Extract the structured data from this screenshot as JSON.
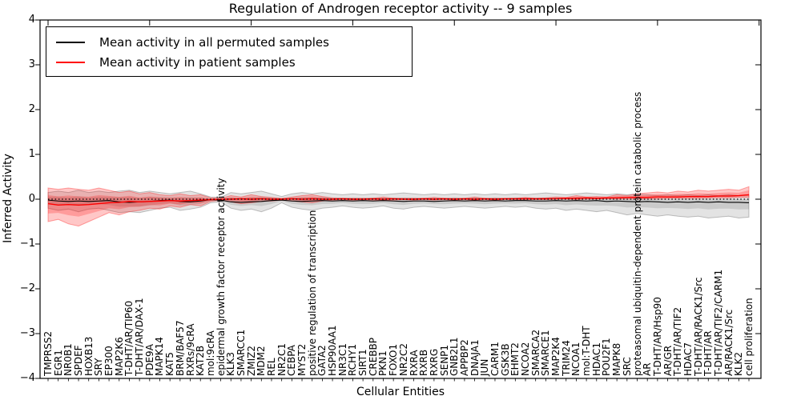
{
  "figure": {
    "title": "Regulation of Androgen receptor activity -- 9 samples"
  },
  "axes": {
    "xlabel": "Cellular Entities",
    "ylabel": "Inferred Activity"
  },
  "legend": {
    "items": [
      {
        "label": "Mean activity in all permuted samples",
        "color": "#000000"
      },
      {
        "label": "Mean activity in patient samples",
        "color": "#ff0000"
      }
    ]
  },
  "chart_data": {
    "type": "line",
    "title": "Regulation of Androgen receptor activity -- 9 samples",
    "xlabel": "Cellular Entities",
    "ylabel": "Inferred Activity",
    "ylim": [
      -4,
      4
    ],
    "yticks": [
      -4,
      -3,
      -2,
      -1,
      0,
      1,
      2,
      3,
      4
    ],
    "grid": false,
    "legend_position": "upper left",
    "zero_line": {
      "y": 0,
      "style": "dotted",
      "color": "#000000"
    },
    "categories": [
      "TMPRSS2",
      "EGR1",
      "NR0B1",
      "SPDEF",
      "HOXB13",
      "SRY",
      "EP300",
      "MAP2K6",
      "T-DHT/AR/TIP60",
      "T-DHT/AR/DAX-1",
      "PDE9A",
      "MAPK14",
      "KAT5",
      "BRM/BAF57",
      "RXRs/9cRA",
      "KAT2B",
      "mol:9cRA",
      "epidermal growth factor receptor activity",
      "KLK3",
      "SMARCC1",
      "ZMIZ2",
      "MDM2",
      "REL",
      "NR2C1",
      "CEBPA",
      "MYST2",
      "positive regulation of transcription",
      "GATA2",
      "HSP90AA1",
      "NR3C1",
      "RCHY1",
      "SIRT1",
      "CREBBP",
      "PKN1",
      "FOXO1",
      "NR2C2",
      "RXRA",
      "RXRB",
      "RXRG",
      "SENP1",
      "GNB2L1",
      "APPBP2",
      "DNAJA1",
      "JUN",
      "CARM1",
      "GSK3B",
      "EHMT2",
      "NCOA2",
      "SMARCA2",
      "SMARCE1",
      "MAP2K4",
      "TRIM24",
      "NCOA1",
      "mol:T-DHT",
      "HDAC1",
      "POU2F1",
      "MAPK8",
      "SRC",
      "proteasomal ubiquitin-dependent protein catabolic process",
      "AR",
      "T-DHT/AR/Hsp90",
      "AR/GR",
      "T-DHT/AR/TIF2",
      "HDAC7",
      "T-DHT/AR/RACK1/Src",
      "T-DHT/AR",
      "T-DHT/AR/TIF2/CARM1",
      "AR/RACK1/Src",
      "KLK2",
      "cell proliferation"
    ],
    "series": [
      {
        "name": "Mean activity in all permuted samples",
        "color": "#000000",
        "values": [
          -0.02,
          -0.04,
          -0.05,
          -0.04,
          -0.05,
          -0.04,
          -0.03,
          -0.06,
          -0.07,
          -0.06,
          -0.05,
          -0.03,
          -0.02,
          -0.05,
          -0.06,
          -0.04,
          -0.01,
          -0.02,
          -0.06,
          -0.07,
          -0.06,
          -0.05,
          -0.03,
          -0.02,
          -0.04,
          -0.05,
          -0.04,
          -0.03,
          -0.04,
          -0.03,
          -0.04,
          -0.03,
          -0.04,
          -0.03,
          -0.04,
          -0.05,
          -0.04,
          -0.04,
          -0.05,
          -0.04,
          -0.03,
          -0.04,
          -0.03,
          -0.04,
          -0.03,
          -0.04,
          -0.03,
          -0.03,
          -0.04,
          -0.04,
          -0.03,
          -0.04,
          -0.03,
          -0.04,
          -0.03,
          -0.05,
          -0.04,
          -0.05,
          -0.06,
          -0.05,
          -0.06,
          -0.07,
          -0.06,
          -0.07,
          -0.06,
          -0.07,
          -0.06,
          -0.07,
          -0.07,
          -0.08
        ]
      },
      {
        "name": "Mean activity in patient samples",
        "color": "#ff0000",
        "values": [
          -0.1,
          -0.13,
          -0.12,
          -0.13,
          -0.12,
          -0.1,
          -0.08,
          -0.07,
          -0.05,
          -0.06,
          -0.05,
          -0.04,
          -0.03,
          -0.04,
          -0.03,
          -0.02,
          -0.01,
          0.0,
          0.0,
          0.01,
          0.0,
          0.01,
          0.0,
          0.0,
          0.01,
          0.0,
          0.01,
          0.0,
          0.0,
          0.01,
          0.0,
          0.0,
          0.01,
          0.0,
          0.01,
          0.0,
          0.0,
          0.01,
          0.0,
          0.01,
          0.0,
          0.01,
          0.0,
          0.01,
          0.0,
          0.01,
          0.01,
          0.01,
          0.01,
          0.01,
          0.01,
          0.02,
          0.02,
          0.03,
          0.02,
          0.03,
          0.03,
          0.04,
          0.04,
          0.04,
          0.05,
          0.05,
          0.05,
          0.06,
          0.06,
          0.06,
          0.07,
          0.07,
          0.08,
          0.1
        ]
      }
    ],
    "bands": [
      {
        "name": "permuted-samples-band",
        "color": "#000000",
        "opacity": 0.11,
        "inner_fraction": 0.45,
        "hi": [
          0.15,
          0.18,
          0.15,
          0.2,
          0.15,
          0.18,
          0.15,
          0.18,
          0.2,
          0.15,
          0.18,
          0.15,
          0.12,
          0.15,
          0.18,
          0.12,
          0.05,
          0.04,
          0.15,
          0.12,
          0.15,
          0.18,
          0.12,
          0.06,
          0.12,
          0.15,
          0.12,
          0.15,
          0.12,
          0.1,
          0.12,
          0.1,
          0.12,
          0.1,
          0.12,
          0.14,
          0.12,
          0.1,
          0.12,
          0.1,
          0.12,
          0.1,
          0.12,
          0.1,
          0.12,
          0.1,
          0.12,
          0.1,
          0.12,
          0.14,
          0.12,
          0.1,
          0.12,
          0.14,
          0.12,
          0.1,
          0.12,
          0.1,
          0.12,
          0.1,
          0.08,
          0.1,
          0.08,
          0.1,
          0.08,
          0.1,
          0.08,
          0.1,
          0.08,
          0.1
        ],
        "lo": [
          -0.2,
          -0.25,
          -0.22,
          -0.28,
          -0.22,
          -0.2,
          -0.25,
          -0.3,
          -0.28,
          -0.3,
          -0.25,
          -0.2,
          -0.18,
          -0.25,
          -0.22,
          -0.18,
          -0.08,
          -0.06,
          -0.2,
          -0.25,
          -0.22,
          -0.28,
          -0.2,
          -0.08,
          -0.18,
          -0.22,
          -0.25,
          -0.2,
          -0.18,
          -0.15,
          -0.18,
          -0.2,
          -0.18,
          -0.15,
          -0.2,
          -0.22,
          -0.18,
          -0.16,
          -0.18,
          -0.2,
          -0.18,
          -0.16,
          -0.18,
          -0.2,
          -0.18,
          -0.16,
          -0.18,
          -0.16,
          -0.2,
          -0.22,
          -0.2,
          -0.25,
          -0.22,
          -0.25,
          -0.28,
          -0.25,
          -0.3,
          -0.35,
          -0.32,
          -0.35,
          -0.38,
          -0.35,
          -0.38,
          -0.4,
          -0.38,
          -0.42,
          -0.4,
          -0.38,
          -0.42,
          -0.4
        ]
      },
      {
        "name": "patient-samples-band",
        "color": "#ff0000",
        "opacity": 0.22,
        "inner_fraction": 0.55,
        "hi": [
          0.25,
          0.22,
          0.25,
          0.22,
          0.2,
          0.25,
          0.2,
          0.15,
          0.18,
          0.12,
          0.15,
          0.1,
          0.08,
          0.12,
          0.08,
          0.1,
          0.03,
          0.02,
          0.08,
          0.05,
          0.1,
          0.06,
          0.04,
          0.02,
          0.05,
          0.08,
          0.1,
          0.06,
          0.03,
          0.02,
          0.02,
          0.02,
          0.02,
          0.05,
          0.02,
          0.02,
          0.02,
          0.02,
          0.04,
          0.02,
          0.02,
          0.02,
          0.05,
          0.02,
          0.02,
          0.02,
          0.02,
          0.04,
          0.02,
          0.03,
          0.05,
          0.04,
          0.08,
          0.05,
          0.06,
          0.05,
          0.1,
          0.08,
          0.12,
          0.14,
          0.16,
          0.14,
          0.18,
          0.16,
          0.2,
          0.18,
          0.2,
          0.22,
          0.2,
          0.28
        ],
        "lo": [
          -0.5,
          -0.45,
          -0.55,
          -0.6,
          -0.5,
          -0.4,
          -0.3,
          -0.35,
          -0.28,
          -0.25,
          -0.2,
          -0.22,
          -0.15,
          -0.18,
          -0.12,
          -0.15,
          -0.05,
          -0.02,
          -0.06,
          -0.1,
          -0.08,
          -0.05,
          -0.04,
          -0.02,
          -0.04,
          -0.06,
          -0.08,
          -0.04,
          -0.02,
          -0.01,
          -0.02,
          -0.01,
          -0.02,
          -0.03,
          -0.02,
          -0.01,
          -0.02,
          -0.01,
          -0.02,
          -0.01,
          -0.02,
          -0.01,
          -0.02,
          -0.01,
          -0.02,
          -0.01,
          -0.01,
          -0.01,
          -0.01,
          -0.01,
          0.0,
          0.0,
          -0.01,
          0.0,
          0.0,
          0.01,
          0.0,
          0.01,
          0.0,
          0.01,
          0.01,
          0.02,
          0.02,
          0.02,
          0.02,
          0.03,
          0.03,
          0.03,
          0.04,
          0.04
        ]
      }
    ]
  }
}
